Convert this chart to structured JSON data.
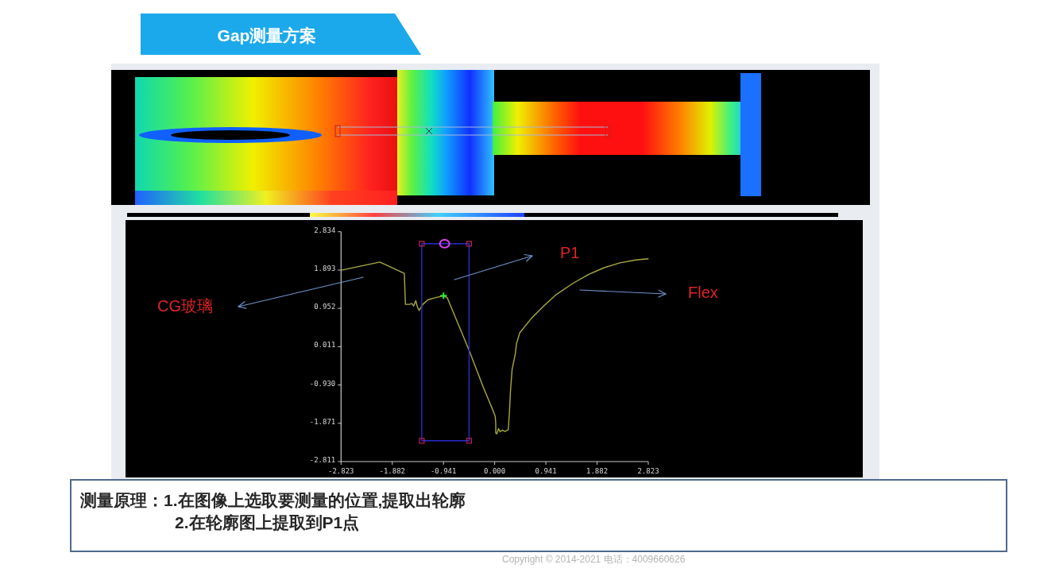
{
  "chart_data": {
    "type": "line",
    "title": "Gap测量方案",
    "xlim": [
      -2.823,
      2.823
    ],
    "ylim": [
      -2.811,
      2.834
    ],
    "xticks": [
      -2.823,
      -1.882,
      -0.941,
      {
        "value": 0,
        "label": "0.000"
      },
      0.941,
      1.882,
      2.823
    ],
    "yticks": [
      -2.811,
      -1.871,
      {
        "value": -0.93,
        "label": "-0.930"
      },
      0.011,
      0.952,
      1.893,
      2.834
    ],
    "series": [
      {
        "color": "#a9aa3f",
        "x": [
          -2.82,
          -2.11,
          -1.66,
          -1.64,
          -1.57,
          -1.52,
          -1.49,
          -1.45,
          -1.42,
          -1.39,
          -1.32,
          -1.23,
          -1.1,
          -0.94,
          -0.87,
          -0.47,
          -0.21,
          -0.03,
          0.01,
          0.02,
          0.02,
          0.04,
          0.07,
          0.1,
          0.14,
          0.19,
          0.25,
          0.27,
          0.29,
          0.32,
          0.38,
          0.4,
          0.46,
          0.67,
          0.9,
          1.13,
          1.43,
          1.72,
          2.01,
          2.3,
          2.59,
          2.82
        ],
        "values": [
          1.89,
          2.09,
          1.81,
          1.05,
          1.05,
          1.07,
          1.01,
          1.14,
          0.99,
          0.9,
          1.05,
          1.16,
          1.21,
          1.26,
          1.21,
          -0.08,
          -0.98,
          -1.56,
          -1.7,
          -1.89,
          -2.11,
          -2.13,
          -2.0,
          -2.08,
          -2.04,
          -2.07,
          -2.03,
          -1.63,
          -1.09,
          -0.55,
          -0.16,
          0.08,
          0.35,
          0.7,
          1.01,
          1.29,
          1.56,
          1.78,
          1.95,
          2.07,
          2.14,
          2.17
        ]
      },
      {
        "type": "line",
        "color": "#2a2ad0",
        "x": [
          -1.34,
          -1.34,
          -0.47,
          -0.47
        ],
        "values": [
          -2.3,
          2.54,
          2.54,
          -2.3
        ]
      },
      {
        "type": "line",
        "color": "#2a2ad0",
        "x": [
          -1.34,
          -0.47
        ],
        "values": [
          -2.3,
          -2.3
        ]
      },
      {
        "type": "scatter",
        "marker": "square",
        "color": "#b02050",
        "x": [
          -1.34,
          -0.47,
          -0.47,
          -1.34
        ],
        "values": [
          2.54,
          2.54,
          -2.3,
          -2.3
        ]
      },
      {
        "type": "scatter",
        "marker": "circle",
        "color": "#e040f0",
        "x": [
          -0.92
        ],
        "values": [
          2.54
        ]
      },
      {
        "type": "scatter",
        "marker": "cross",
        "color": "#30f030",
        "x": [
          -0.94
        ],
        "values": [
          1.26
        ]
      }
    ],
    "annotations": [
      "CG玻璃",
      "P1",
      "Flex",
      "测量原理：1.在图像上选取要测量的位置,提取出轮廓",
      "2.在轮廓图上提取到P1点",
      "Copyright © 2014-2021 电话：4009660626"
    ]
  }
}
